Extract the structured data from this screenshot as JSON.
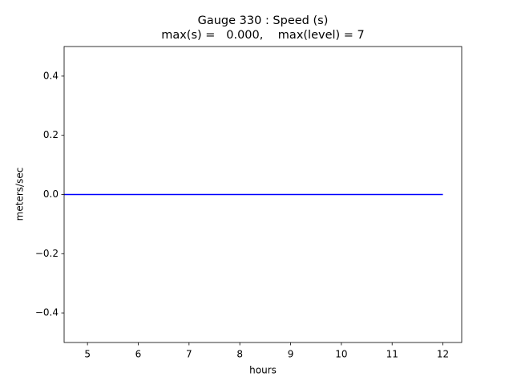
{
  "chart_data": {
    "type": "line",
    "title": [
      "Gauge 330 : Speed (s)",
      "max(s) =   0.000,    max(level) = 7"
    ],
    "xlabel": "hours",
    "ylabel": "meters/sec",
    "x": [
      4.54,
      12
    ],
    "values": [
      0,
      0
    ],
    "color": "#0000ff",
    "xlim": [
      4.54,
      12.37
    ],
    "ylim": [
      -0.5,
      0.5
    ],
    "xticks": [
      5,
      6,
      7,
      8,
      9,
      10,
      11,
      12
    ],
    "yticks": [
      {
        "value": -0.4,
        "label": "−0.4"
      },
      {
        "value": -0.2,
        "label": "−0.2"
      },
      {
        "value": 0,
        "label": "0.0"
      },
      0.2,
      0.4
    ],
    "grid": false
  }
}
